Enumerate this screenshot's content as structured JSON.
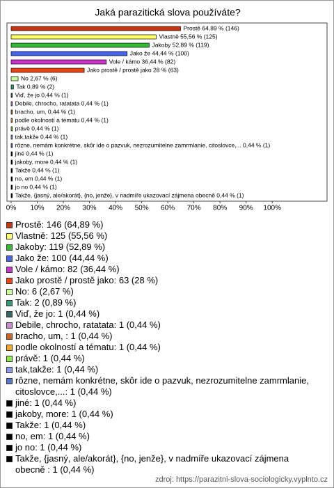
{
  "chart_data": {
    "type": "hbar",
    "title": "Jaká parazitická slova používáte?",
    "values": [
      64.89,
      55.56,
      52.89,
      44.44,
      36.44,
      28,
      2.67,
      0.89,
      0.44,
      0.44,
      0.44,
      0.44,
      0.44,
      0.44,
      0.44,
      0.44,
      0.44,
      0.44,
      0.44,
      0.44,
      0.44
    ],
    "value_labels": [
      "Prostě 64,89 % (146)",
      "Vlastně 55,56 % (125)",
      "Jakoby 52,89 % (119)",
      "Jako že 44,44 % (100)",
      "Vole / kámo 36,44 % (82)",
      "Jako prostě / prostě jako 28 % (63)",
      "No 2,67 % (6)",
      "Tak 0,89 % (2)",
      "Viď, že jo 0,44 % (1)",
      "Debile, chrocho, ratatata 0,44 % (1)",
      "bracho, um,  0,44 % (1)",
      "podle okolností a tématu 0,44 % (1)",
      "právě 0,44 % (1)",
      "tak,takže 0,44 % (1)",
      "rôzne, nemám konkrétne, skôr ide o pazvuk, nezrozumitelne zamrmlanie, citoslovce,... 0,44 % (1)",
      "jiné 0,44 % (1)",
      "jakoby, more 0,44 % (1)",
      "Takže 0,44 % (1)",
      "no, em 0,44 % (1)",
      "jo no 0,44 % (1)",
      "Takže, {jasný, ale/akorát}, {no, jenže}, v nadmíře ukazovací zájmena obecně  0,44 % (1)"
    ],
    "legend_labels": [
      "Prostě: 146 (64,89 %)",
      "Vlastně: 125 (55,56 %)",
      "Jakoby: 119 (52,89 %)",
      "Jako že: 100 (44,44 %)",
      "Vole / kámo: 82 (36,44 %)",
      "Jako prostě / prostě jako: 63 (28 %)",
      "No: 6 (2,67 %)",
      "Tak: 2 (0,89 %)",
      "Viď, že jo: 1 (0,44 %)",
      "Debile, chrocho, ratatata: 1 (0,44 %)",
      "bracho, um, : 1 (0,44 %)",
      "podle okolností a tématu: 1 (0,44 %)",
      "právě: 1 (0,44 %)",
      "tak,takže: 1 (0,44 %)",
      "rôzne, nemám konkrétne, skôr ide o pazvuk, nezrozumitelne zamrmlanie, citoslovce,...: 1 (0,44 %)",
      "jiné: 1 (0,44 %)",
      "jakoby, more: 1 (0,44 %)",
      "Takže: 1 (0,44 %)",
      "no, em: 1 (0,44 %)",
      "jo no: 1 (0,44 %)",
      "Takže, {jasný, ale/akorát}, {no, jenže}, v nadmíře ukazovací zájmena obecně : 1 (0,44 %)"
    ],
    "colors": [
      "#cc3311",
      "#ffff66",
      "#33bb33",
      "#4466ee",
      "#cc33cc",
      "#ee4411",
      "#ccff99",
      "#339977",
      "#336666",
      "#cc88cc",
      "#cc6622",
      "#ffaa22",
      "#88ee44",
      "#8899ee",
      "#5577cc",
      "#000000",
      "#000000",
      "#000000",
      "#000000",
      "#000000",
      "#000000"
    ],
    "xlim": [
      0,
      121
    ],
    "xticks": [
      {
        "value": 0,
        "label": "0%"
      },
      {
        "value": 10,
        "label": "10%"
      },
      {
        "value": 20,
        "label": "20%"
      },
      {
        "value": 30,
        "label": "30%"
      },
      {
        "value": 40,
        "label": "40%"
      },
      {
        "value": 50,
        "label": "50%"
      },
      {
        "value": 60,
        "label": "60%"
      },
      {
        "value": 70,
        "label": "70%"
      },
      {
        "value": 80,
        "label": "80%"
      },
      {
        "value": 90,
        "label": "90%"
      },
      {
        "value": 100,
        "label": "100%"
      }
    ],
    "source": "zdroj: https://parazitni-slova-sociologicky.vyplnto.cz"
  }
}
